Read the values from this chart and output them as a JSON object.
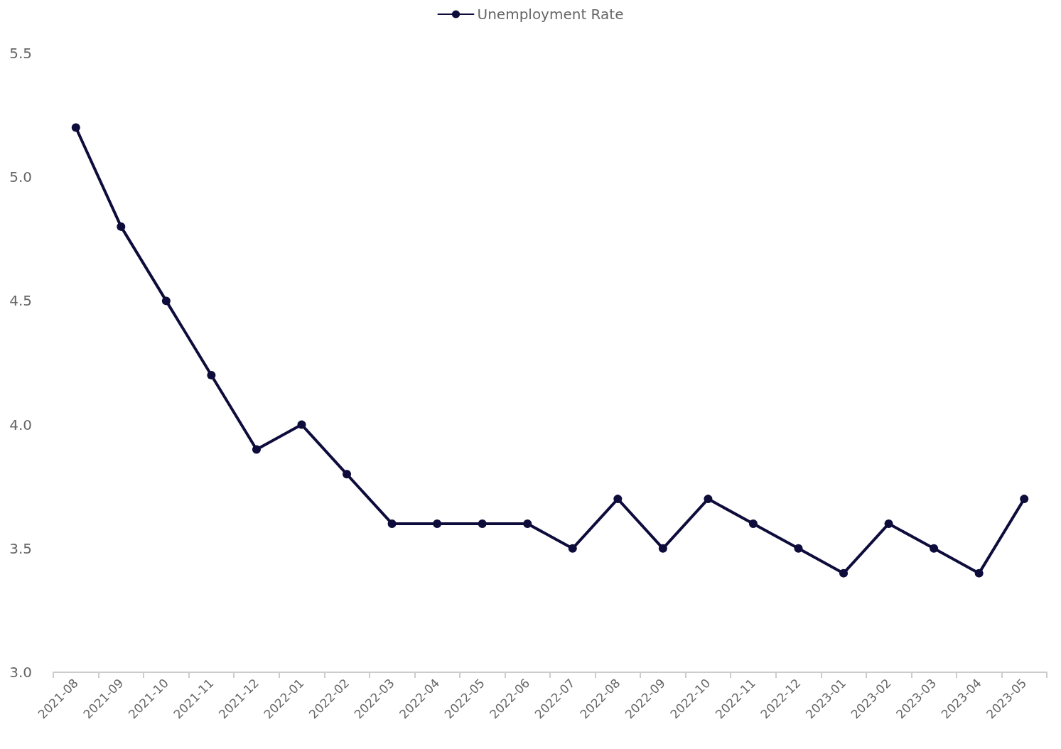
{
  "chart_data": {
    "type": "line",
    "categories": [
      "2021-08",
      "2021-09",
      "2021-10",
      "2021-11",
      "2021-12",
      "2022-01",
      "2022-02",
      "2022-03",
      "2022-04",
      "2022-05",
      "2022-06",
      "2022-07",
      "2022-08",
      "2022-09",
      "2022-10",
      "2022-11",
      "2022-12",
      "2023-01",
      "2023-02",
      "2023-03",
      "2023-04",
      "2023-05"
    ],
    "series": [
      {
        "name": "Unemployment Rate",
        "color": "#0e0c3b",
        "values": [
          5.2,
          4.8,
          4.5,
          4.2,
          3.9,
          4.0,
          3.8,
          3.6,
          3.6,
          3.6,
          3.6,
          3.5,
          3.7,
          3.5,
          3.7,
          3.6,
          3.5,
          3.4,
          3.6,
          3.5,
          3.4,
          3.7
        ]
      }
    ],
    "ylim": [
      3.0,
      5.5
    ],
    "yticks": [
      {
        "value": 3.0,
        "label": "3.0"
      },
      3.5,
      {
        "value": 4.0,
        "label": "4.0"
      },
      4.5,
      {
        "value": 5.0,
        "label": "5.0"
      },
      5.5
    ],
    "grid": false,
    "legend": "top",
    "marker": "circle",
    "line_style": "solid"
  }
}
